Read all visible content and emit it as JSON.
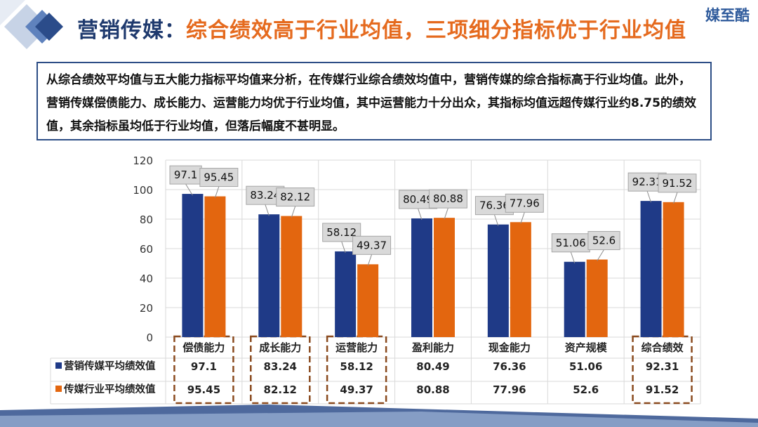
{
  "header": {
    "title_prefix": "营销传媒：",
    "title_main": "综合绩效高于行业均值，三项细分指标优于行业均值",
    "logo_text": "媒至酷"
  },
  "summary": {
    "text": "从综合绩效平均值与五大能力指标平均值来分析，在传媒行业综合绩效均值中，营销传媒的综合指标高于行业均值。此外，营销传媒偿债能力、成长能力、运营能力均优于行业均值，其中运营能力十分出众，其指标均值远超传媒行业约8.75的绩效值，其余指标虽均低于行业均值，但落后幅度不甚明显。"
  },
  "colors": {
    "series1": "#1f3a87",
    "series2": "#e3660f",
    "accent": "#e56a1e",
    "dark": "#1f3a6e",
    "dashed_box": "#8a4a1e"
  },
  "chart_data": {
    "type": "bar",
    "categories": [
      "偿债能力",
      "成长能力",
      "运营能力",
      "盈利能力",
      "现金能力",
      "资产规模",
      "综合绩效"
    ],
    "series": [
      {
        "name": "营销传媒平均绩效值",
        "values": [
          97.1,
          83.24,
          58.12,
          80.49,
          76.36,
          51.06,
          92.31
        ]
      },
      {
        "name": "传媒行业平均绩效值",
        "values": [
          95.45,
          82.12,
          49.37,
          80.88,
          77.96,
          52.6,
          91.52
        ]
      }
    ],
    "y_ticks": [
      0,
      20,
      40,
      60,
      80,
      100,
      120
    ],
    "ylim": [
      0,
      120
    ],
    "grid": true,
    "legend": "data-table",
    "highlighted_categories": [
      "偿债能力",
      "成长能力",
      "运营能力",
      "综合绩效"
    ]
  }
}
